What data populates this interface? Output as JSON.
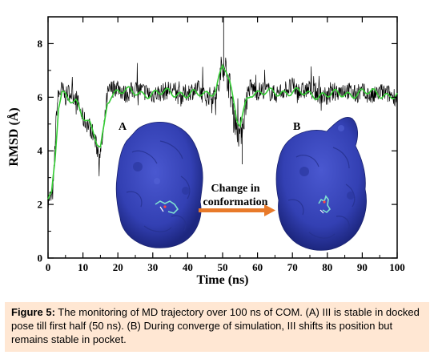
{
  "chart_data": {
    "type": "line",
    "title": "",
    "xlabel": "Time (ns)",
    "ylabel": "RMSD (Å)",
    "xlim": [
      0,
      100
    ],
    "ylim": [
      0,
      9
    ],
    "x_ticks": [
      0,
      10,
      20,
      30,
      40,
      50,
      60,
      70,
      80,
      90,
      100
    ],
    "y_ticks": [
      0,
      2,
      4,
      6,
      8
    ],
    "grid": false,
    "legend": "none",
    "series": [
      {
        "color": "#000000",
        "x": [
          0,
          0.5,
          1,
          1.5,
          2,
          2.5,
          3,
          4,
          5,
          6,
          8,
          10,
          12,
          13,
          14,
          15,
          16,
          17,
          18,
          20,
          22,
          25,
          28,
          30,
          33,
          35,
          38,
          40,
          43,
          45,
          48,
          49,
          50,
          51,
          52,
          53,
          54,
          55,
          56,
          57,
          58,
          60,
          62,
          65,
          68,
          70,
          72,
          75,
          78,
          80,
          82,
          85,
          88,
          90,
          93,
          95,
          98,
          100
        ],
        "y": [
          2.1,
          2.3,
          2.2,
          2.6,
          4.2,
          5.6,
          6.1,
          6.3,
          6.0,
          6.2,
          6.0,
          5.2,
          4.9,
          4.6,
          4.1,
          3.9,
          4.8,
          6.1,
          6.3,
          6.4,
          6.1,
          6.3,
          6.2,
          6.1,
          6.2,
          6.3,
          6.0,
          6.2,
          6.3,
          6.0,
          6.1,
          6.4,
          7.4,
          7.0,
          6.4,
          5.6,
          4.9,
          4.6,
          5.2,
          6.1,
          6.4,
          6.2,
          6.3,
          6.1,
          6.3,
          6.4,
          6.2,
          6.3,
          6.1,
          6.0,
          6.2,
          6.3,
          6.1,
          6.2,
          6.0,
          6.2,
          6.1,
          6.0
        ]
      },
      {
        "color": "#33cc33",
        "x": [
          0,
          1,
          2,
          3,
          4,
          6,
          8,
          10,
          12,
          14,
          15,
          16,
          17,
          18,
          20,
          25,
          30,
          35,
          40,
          45,
          48,
          50,
          51,
          52,
          53,
          54,
          55,
          56,
          57,
          58,
          60,
          65,
          70,
          75,
          80,
          85,
          90,
          95,
          100
        ],
        "y": [
          2.2,
          2.3,
          3.6,
          5.6,
          6.1,
          6.0,
          5.9,
          5.3,
          4.9,
          4.3,
          4.1,
          4.9,
          5.9,
          6.1,
          6.2,
          6.2,
          6.1,
          6.2,
          6.1,
          6.1,
          6.3,
          7.2,
          7.0,
          6.5,
          5.8,
          5.2,
          5.0,
          5.5,
          6.0,
          6.2,
          6.1,
          6.2,
          6.2,
          6.1,
          6.1,
          6.1,
          6.2,
          6.1,
          6.1
        ]
      }
    ],
    "annotations": {
      "panel_a": "A",
      "panel_b": "B",
      "arrow_line1": "Change in",
      "arrow_line2": "conformation"
    }
  },
  "caption": {
    "label": "Figure 5:",
    "text": " The monitoring of MD trajectory over 100 ns of COM. (A) III is stable in docked pose till first half (50 ns). (B) During converge of simulation, III shifts its position but remains stable in pocket."
  },
  "colors": {
    "protein": "#3340b3",
    "arrow": "#e87a2a",
    "caption_bg": "#ffe7d3",
    "noise_trace": "#000000",
    "smooth_trace": "#33cc33"
  }
}
